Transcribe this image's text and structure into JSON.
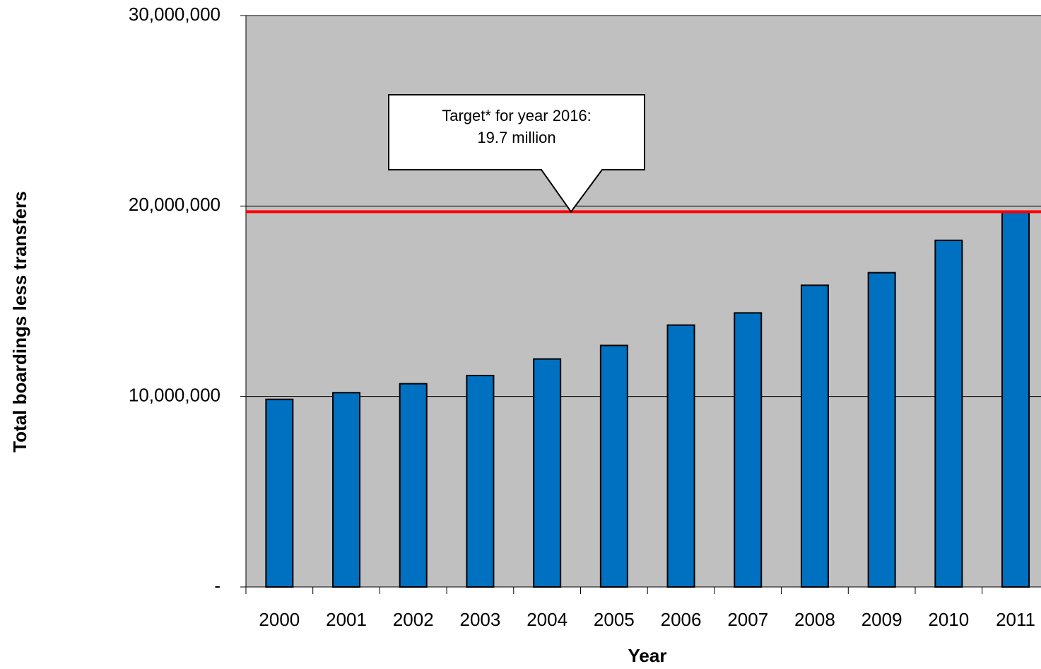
{
  "chart_data": {
    "type": "bar",
    "categories": [
      "2000",
      "2001",
      "2002",
      "2003",
      "2004",
      "2005",
      "2006",
      "2007",
      "2008",
      "2009",
      "2010",
      "2011"
    ],
    "values": [
      9850000,
      10200000,
      10670000,
      11100000,
      11970000,
      12680000,
      13750000,
      14390000,
      15840000,
      16500000,
      18200000,
      19700000
    ],
    "color": "#0070c0",
    "ylim": [
      0,
      30000000
    ],
    "yticks": [
      {
        "value": 0,
        "label": "-"
      },
      {
        "value": 10000000,
        "label": "10,000,000"
      },
      {
        "value": 20000000,
        "label": "20,000,000"
      },
      {
        "value": 30000000,
        "label": "30,000,000"
      }
    ],
    "grid": true,
    "plot_background": "#c0c0c0",
    "ylabel": "Total boardings less transfers",
    "xlabel": "Year",
    "target_line": {
      "value": 19700000,
      "color": "#ff0000"
    },
    "annotation": [
      "Target* for year 2016:",
      "19.7 million"
    ]
  }
}
